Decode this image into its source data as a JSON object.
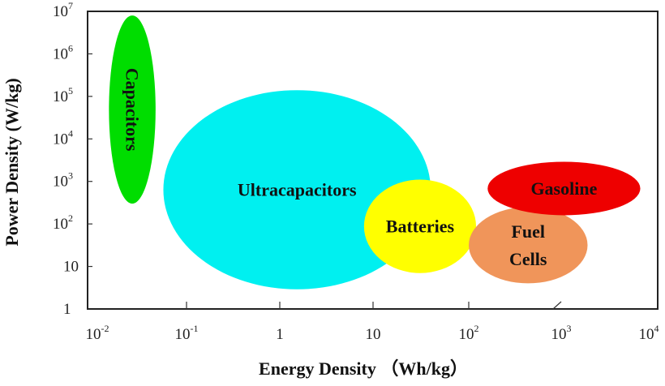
{
  "chart_data": {
    "type": "scatter",
    "subtype": "ragone-region-plot",
    "xlabel": "Energy Density （Wh/kg）",
    "ylabel": "Power Density (W/kg)",
    "xscale": "log",
    "yscale": "log",
    "xlim": [
      0.01,
      10000
    ],
    "ylim": [
      1,
      10000000
    ],
    "x_ticks": [
      {
        "base": "10",
        "exp": "-2",
        "value": 0.01
      },
      {
        "base": "10",
        "exp": "-1",
        "value": 0.1
      },
      {
        "base": "1",
        "exp": "",
        "value": 1
      },
      {
        "base": "10",
        "exp": "",
        "value": 10
      },
      {
        "base": "10",
        "exp": "2",
        "value": 100
      },
      {
        "base": "10",
        "exp": "3",
        "value": 1000
      },
      {
        "base": "10",
        "exp": "4",
        "value": 10000
      }
    ],
    "y_ticks": [
      {
        "base": "1",
        "exp": "",
        "value": 1
      },
      {
        "base": "10",
        "exp": "",
        "value": 10
      },
      {
        "base": "10",
        "exp": "2",
        "value": 100
      },
      {
        "base": "10",
        "exp": "3",
        "value": 1000
      },
      {
        "base": "10",
        "exp": "4",
        "value": 10000
      },
      {
        "base": "10",
        "exp": "5",
        "value": 100000
      },
      {
        "base": "10",
        "exp": "6",
        "value": 1000000
      },
      {
        "base": "10",
        "exp": "7",
        "value": 10000000
      }
    ],
    "regions": [
      {
        "name": "Capacitors",
        "label_lines": [
          "Capacitors"
        ],
        "vertical": true,
        "color": "#00dd00",
        "x_range": [
          0.0135,
          0.045
        ],
        "y_range": [
          300,
          8000000
        ]
      },
      {
        "name": "Ultracapacitors",
        "label_lines": [
          "Ultracapacitors"
        ],
        "vertical": false,
        "color": "#00f0f0",
        "x_range": [
          0.055,
          40
        ],
        "y_range": [
          2.9,
          140000
        ]
      },
      {
        "name": "Batteries",
        "label_lines": [
          "Batteries"
        ],
        "vertical": false,
        "color": "#ffff00",
        "x_range": [
          8,
          120
        ],
        "y_range": [
          7,
          1100
        ]
      },
      {
        "name": "Fuel Cells",
        "label_lines": [
          "Fuel",
          "Cells"
        ],
        "vertical": false,
        "color": "#f0955a",
        "x_range": [
          100,
          2000
        ],
        "y_range": [
          4,
          250
        ]
      },
      {
        "name": "Gasoline",
        "label_lines": [
          "Gasoline"
        ],
        "vertical": false,
        "color": "#ee0000",
        "x_range": [
          160,
          8000
        ],
        "y_range": [
          160,
          2900
        ]
      }
    ],
    "grid": false,
    "legend": "none"
  }
}
